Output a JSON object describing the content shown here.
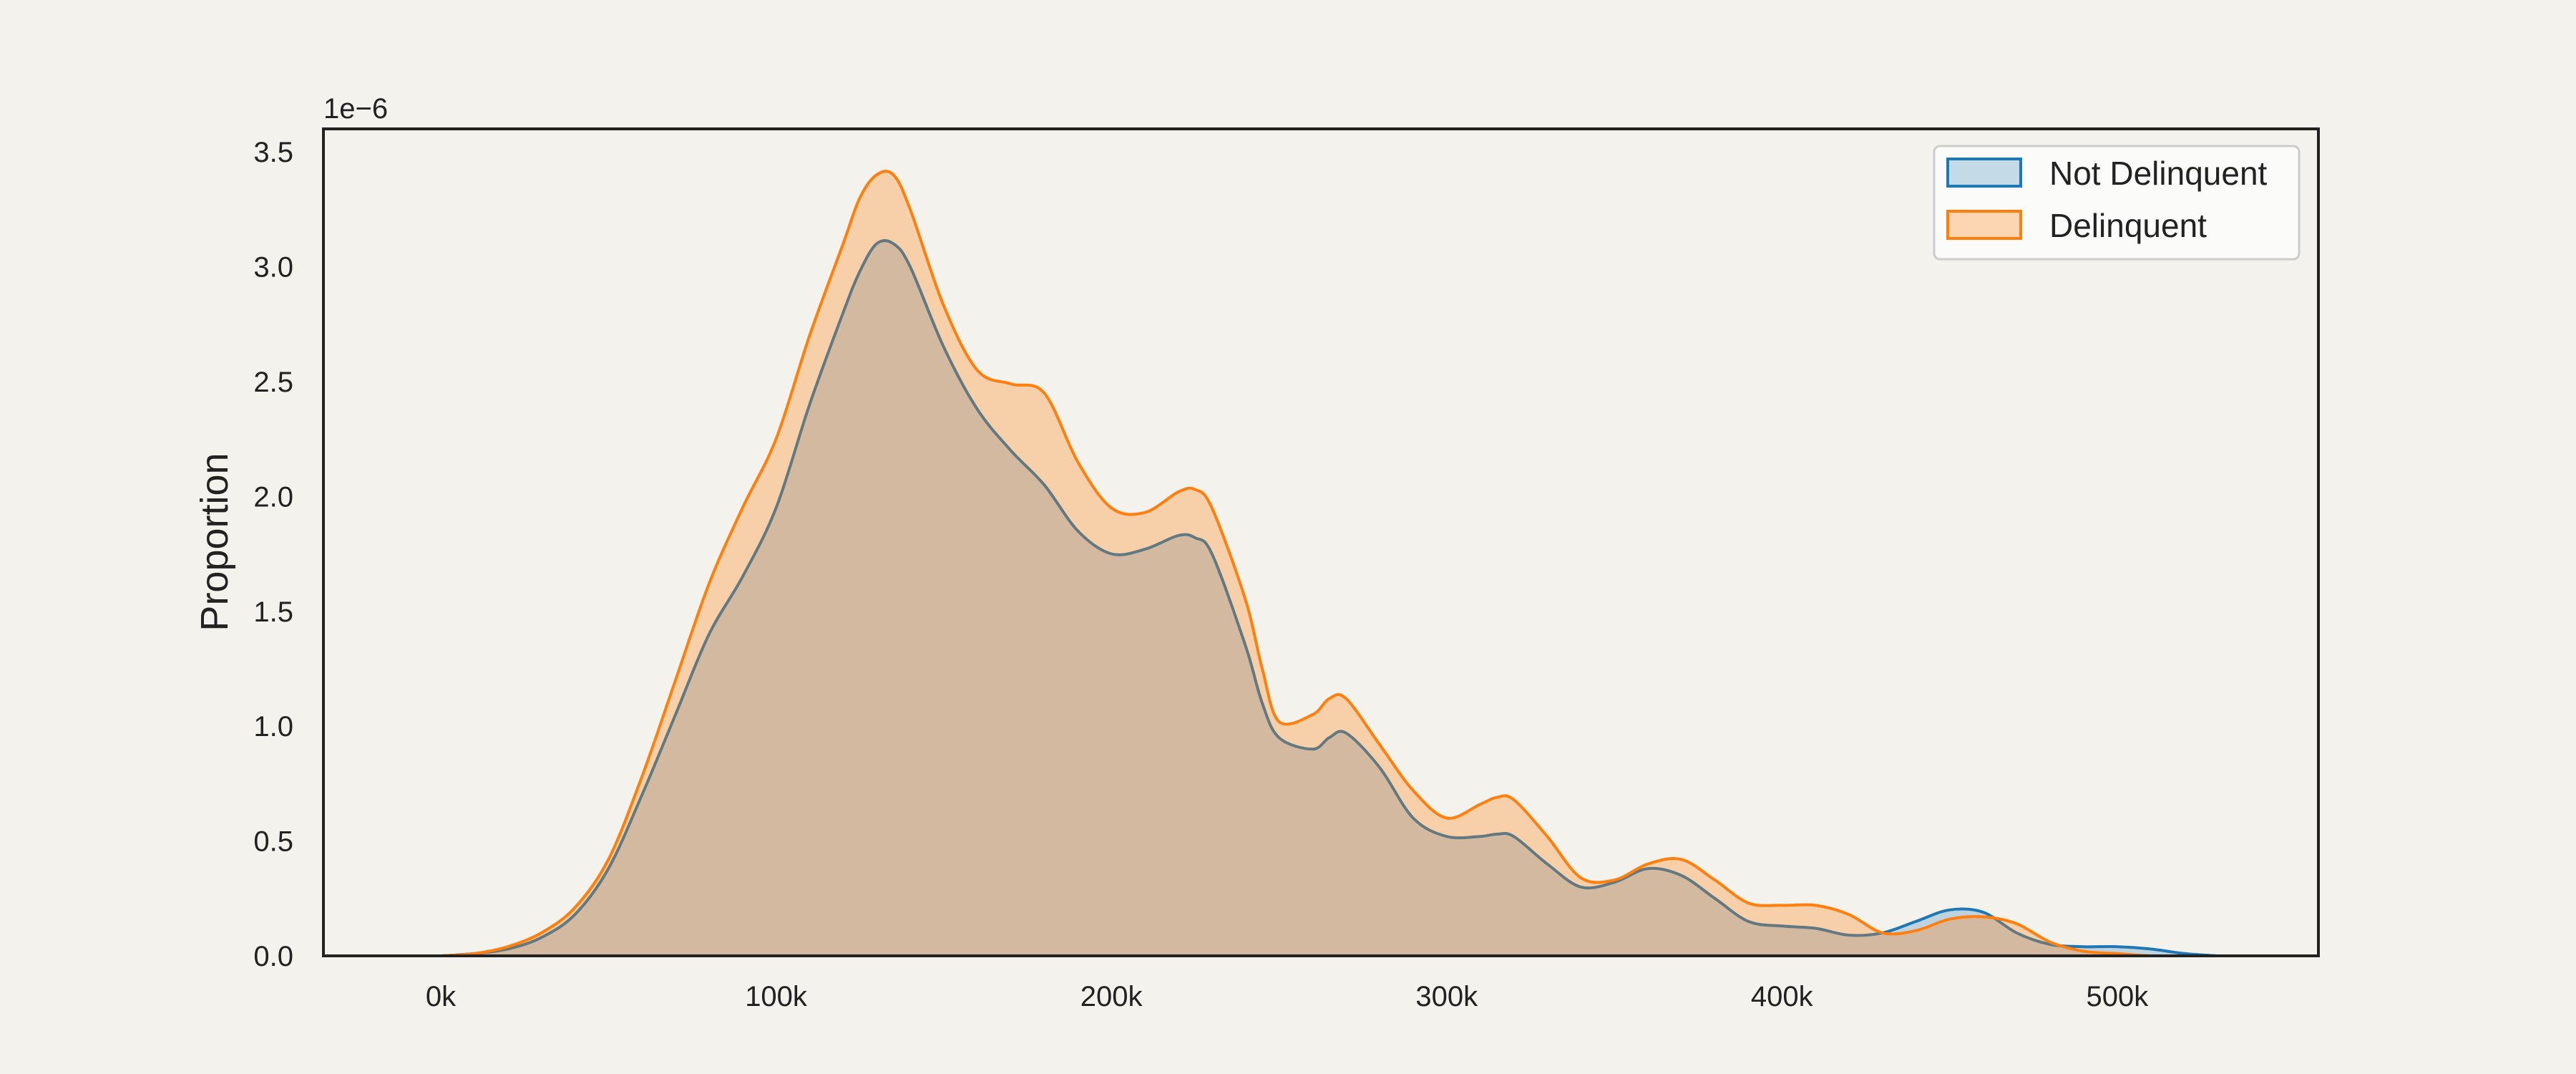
{
  "chart_data": {
    "type": "area",
    "title": "",
    "xlabel": "",
    "ylabel": "Proportion",
    "y_offset_label": "1e−6",
    "xlim": [
      -35000,
      560000
    ],
    "ylim": [
      0,
      3.6
    ],
    "xticks": [
      0,
      100000,
      200000,
      300000,
      400000,
      500000
    ],
    "xtick_labels": [
      "0k",
      "100k",
      "200k",
      "300k",
      "400k",
      "500k"
    ],
    "yticks": [
      0,
      0.5,
      1.0,
      1.5,
      2.0,
      2.5,
      3.0,
      3.5
    ],
    "ytick_labels": [
      "0.0",
      "0.5",
      "1.0",
      "1.5",
      "2.0",
      "2.5",
      "3.0",
      "3.5"
    ],
    "grid": false,
    "legend_position": "top-right",
    "x": [
      0,
      10000,
      20000,
      30000,
      40000,
      50000,
      60000,
      70000,
      80000,
      90000,
      100000,
      110000,
      120000,
      125000,
      130000,
      135000,
      140000,
      150000,
      160000,
      170000,
      180000,
      190000,
      200000,
      210000,
      220000,
      225000,
      230000,
      240000,
      245000,
      250000,
      260000,
      265000,
      270000,
      280000,
      290000,
      300000,
      310000,
      315000,
      320000,
      330000,
      340000,
      350000,
      360000,
      370000,
      380000,
      390000,
      400000,
      410000,
      420000,
      430000,
      440000,
      450000,
      460000,
      470000,
      480000,
      490000,
      500000,
      510000,
      520000,
      530000
    ],
    "series": [
      {
        "name": "Not Delinquent",
        "color": "#1f77b4",
        "values": [
          0.0,
          0.01,
          0.03,
          0.08,
          0.18,
          0.38,
          0.7,
          1.05,
          1.4,
          1.65,
          1.95,
          2.4,
          2.8,
          2.98,
          3.1,
          3.1,
          3.0,
          2.65,
          2.38,
          2.2,
          2.05,
          1.85,
          1.75,
          1.77,
          1.83,
          1.82,
          1.75,
          1.35,
          1.1,
          0.95,
          0.9,
          0.95,
          0.97,
          0.82,
          0.6,
          0.52,
          0.52,
          0.53,
          0.52,
          0.4,
          0.3,
          0.32,
          0.38,
          0.35,
          0.25,
          0.15,
          0.13,
          0.12,
          0.09,
          0.1,
          0.15,
          0.2,
          0.19,
          0.1,
          0.05,
          0.04,
          0.04,
          0.03,
          0.01,
          0.0
        ]
      },
      {
        "name": "Delinquent",
        "color": "#ff7f0e",
        "values": [
          0.0,
          0.01,
          0.04,
          0.1,
          0.21,
          0.42,
          0.78,
          1.2,
          1.62,
          1.95,
          2.25,
          2.7,
          3.1,
          3.3,
          3.4,
          3.4,
          3.25,
          2.83,
          2.55,
          2.49,
          2.45,
          2.15,
          1.95,
          1.93,
          2.02,
          2.03,
          1.95,
          1.55,
          1.25,
          1.02,
          1.05,
          1.12,
          1.12,
          0.92,
          0.72,
          0.6,
          0.66,
          0.69,
          0.68,
          0.52,
          0.34,
          0.33,
          0.4,
          0.42,
          0.33,
          0.23,
          0.22,
          0.22,
          0.18,
          0.1,
          0.11,
          0.16,
          0.17,
          0.14,
          0.06,
          0.02,
          0.01,
          0.0,
          0.0,
          0.0
        ]
      }
    ]
  }
}
